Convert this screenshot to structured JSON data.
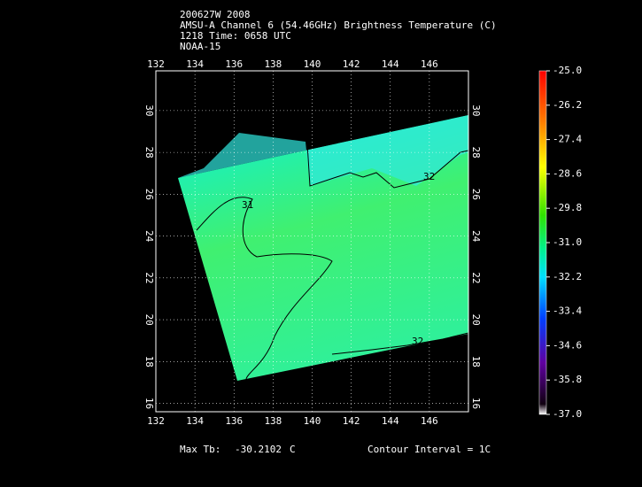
{
  "title_lines": [
    "200627W 2008",
    "AMSU-A Channel 6 (54.46GHz) Brightness Temperature (C)",
    "1218 Time: 0658 UTC",
    "NOAA-15"
  ],
  "map": {
    "xlim": [
      132,
      148
    ],
    "ylim": [
      15.6,
      31.9
    ],
    "xticks": [
      132,
      134,
      136,
      138,
      140,
      142,
      144,
      146
    ],
    "yticks": [
      16,
      18,
      20,
      22,
      24,
      26,
      28,
      30
    ],
    "grid": true,
    "contour_labels": [
      "31",
      "32",
      "32"
    ]
  },
  "colorbar": {
    "lim": [
      -37,
      -25
    ],
    "ticks": [
      {
        "value": -25,
        "label": "-25.0"
      },
      {
        "value": -26.2,
        "label": "-26.2"
      },
      {
        "value": -27.4,
        "label": "-27.4"
      },
      {
        "value": -28.6,
        "label": "-28.6"
      },
      {
        "value": -29.8,
        "label": "-29.8"
      },
      {
        "value": -31,
        "label": "-31.0"
      },
      {
        "value": -32.2,
        "label": "-32.2"
      },
      {
        "value": -33.4,
        "label": "-33.4"
      },
      {
        "value": -34.6,
        "label": "-34.6"
      },
      {
        "value": -35.8,
        "label": "-35.8"
      },
      {
        "value": -37,
        "label": "-37.0"
      }
    ]
  },
  "footer": {
    "max_label": "Max Tb:",
    "max_value": "-30.2102",
    "unit": "C",
    "contour_interval": "Contour Interval = 1C"
  }
}
